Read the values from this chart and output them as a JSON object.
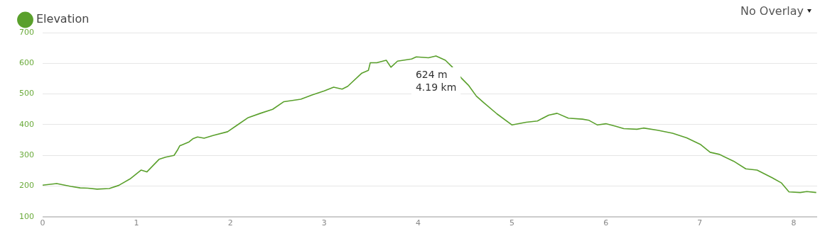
{
  "chart_data": {
    "type": "line",
    "x": [
      0,
      0.15,
      0.3,
      0.4,
      0.48,
      0.58,
      0.71,
      0.81,
      0.93,
      1.05,
      1.11,
      1.24,
      1.31,
      1.4,
      1.44,
      1.46,
      1.56,
      1.6,
      1.65,
      1.72,
      1.82,
      1.97,
      2.07,
      2.19,
      2.32,
      2.45,
      2.57,
      2.75,
      2.87,
      3.0,
      3.1,
      3.19,
      3.25,
      3.4,
      3.47,
      3.49,
      3.56,
      3.66,
      3.71,
      3.78,
      3.93,
      3.98,
      4.11,
      4.19,
      4.29,
      4.36,
      4.46,
      4.54,
      4.62,
      4.69,
      4.84,
      5.0,
      5.15,
      5.27,
      5.39,
      5.48,
      5.6,
      5.75,
      5.82,
      5.91,
      6.0,
      6.1,
      6.19,
      6.33,
      6.4,
      6.55,
      6.71,
      6.86,
      7.01,
      7.11,
      7.21,
      7.36,
      7.49,
      7.61,
      7.77,
      7.87,
      7.95,
      8.07,
      8.14,
      8.24
    ],
    "series": [
      {
        "name": "Elevation",
        "color": "#5aa02c",
        "values": [
          203,
          208,
          199,
          194,
          193,
          190,
          192,
          202,
          223,
          252,
          246,
          287,
          294,
          300,
          319,
          331,
          344,
          354,
          360,
          356,
          365,
          377,
          398,
          423,
          437,
          450,
          475,
          483,
          497,
          510,
          522,
          516,
          525,
          568,
          577,
          602,
          602,
          610,
          587,
          607,
          614,
          621,
          618,
          624,
          610,
          589,
          552,
          527,
          493,
          474,
          435,
          399,
          408,
          412,
          431,
          437,
          421,
          418,
          414,
          399,
          403,
          395,
          387,
          385,
          389,
          382,
          372,
          357,
          335,
          310,
          303,
          281,
          256,
          252,
          227,
          210,
          181,
          179,
          182,
          179
        ]
      }
    ],
    "xlim": [
      0,
      8.25
    ],
    "xticks": [
      0,
      1,
      2,
      3,
      4,
      5,
      6,
      7,
      8
    ],
    "ylim": [
      100,
      700
    ],
    "yticks": [
      100,
      200,
      300,
      400,
      500,
      600,
      700
    ],
    "grid": "y",
    "legend": "top left",
    "marker": "none",
    "line_style": "solid",
    "annotations": [
      {
        "text": "624 m\n4.19 km",
        "x": 4.19,
        "y": 624
      },
      "No Overlay"
    ]
  }
}
